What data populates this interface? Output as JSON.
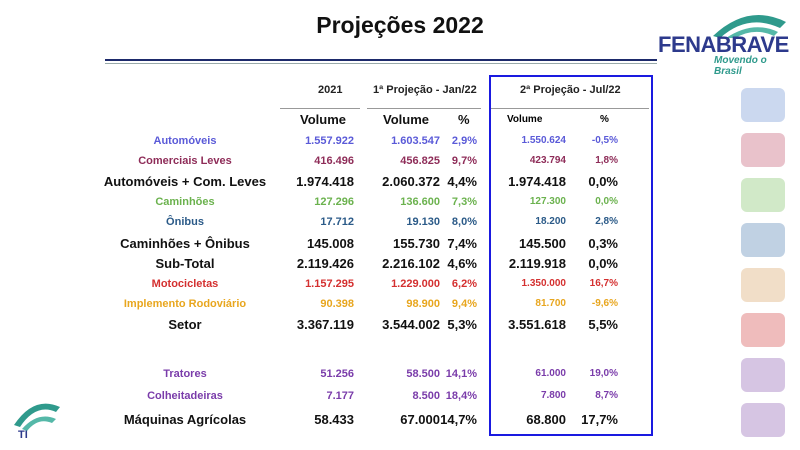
{
  "title": "Projeções 2022",
  "logo": {
    "brand": "FENABRAVE",
    "tagline": "Movendo o Brasil"
  },
  "footer_logo": {
    "text": "TI"
  },
  "headers": {
    "y2021": "2021",
    "p1": "1ª Projeção - Jan/22",
    "p2": "2ª Projeção - Jul/22",
    "volume": "Volume",
    "pct": "%"
  },
  "rows": [
    {
      "label": "Automóveis",
      "v2021": "1.557.922",
      "p1v": "1.603.547",
      "p1p": "2,9%",
      "p2v": "1.550.624",
      "p2p": "-0,5%",
      "color": "#5a5ad8"
    },
    {
      "label": "Comerciais Leves",
      "v2021": "416.496",
      "p1v": "456.825",
      "p1p": "9,7%",
      "p2v": "423.794",
      "p2p": "1,8%",
      "color": "#8e2c58"
    },
    {
      "label": "Automóveis + Com. Leves",
      "v2021": "1.974.418",
      "p1v": "2.060.372",
      "p1p": "4,4%",
      "p2v": "1.974.418",
      "p2p": "0,0%",
      "color": "#111111"
    },
    {
      "label": "Caminhões",
      "v2021": "127.296",
      "p1v": "136.600",
      "p1p": "7,3%",
      "p2v": "127.300",
      "p2p": "0,0%",
      "color": "#6bb24e"
    },
    {
      "label": "Ônibus",
      "v2021": "17.712",
      "p1v": "19.130",
      "p1p": "8,0%",
      "p2v": "18.200",
      "p2p": "2,8%",
      "color": "#2b5a88"
    },
    {
      "label": "Caminhões + Ônibus",
      "v2021": "145.008",
      "p1v": "155.730",
      "p1p": "7,4%",
      "p2v": "145.500",
      "p2p": "0,3%",
      "color": "#111111"
    },
    {
      "label": "Sub-Total",
      "v2021": "2.119.426",
      "p1v": "2.216.102",
      "p1p": "4,6%",
      "p2v": "2.119.918",
      "p2p": "0,0%",
      "color": "#111111"
    },
    {
      "label": "Motocicletas",
      "v2021": "1.157.295",
      "p1v": "1.229.000",
      "p1p": "6,2%",
      "p2v": "1.350.000",
      "p2p": "16,7%",
      "color": "#d43030"
    },
    {
      "label": "Implemento Rodoviário",
      "v2021": "90.398",
      "p1v": "98.900",
      "p1p": "9,4%",
      "p2v": "81.700",
      "p2p": "-9,6%",
      "color": "#e8a61e"
    },
    {
      "label": "Setor",
      "v2021": "3.367.119",
      "p1v": "3.544.002",
      "p1p": "5,3%",
      "p2v": "3.551.618",
      "p2p": "5,5%",
      "color": "#111111"
    },
    {
      "label": "Tratores",
      "v2021": "51.256",
      "p1v": "58.500",
      "p1p": "14,1%",
      "p2v": "61.000",
      "p2p": "19,0%",
      "color": "#7a3caa"
    },
    {
      "label": "Colheitadeiras",
      "v2021": "7.177",
      "p1v": "8.500",
      "p1p": "18,4%",
      "p2v": "7.800",
      "p2p": "8,7%",
      "color": "#7a3caa"
    },
    {
      "label": "Máquinas Agrícolas",
      "v2021": "58.433",
      "p1v": "67.000",
      "p1p": "14,7%",
      "p2v": "68.800",
      "p2p": "17,7%",
      "color": "#111111"
    }
  ],
  "side_icons": [
    {
      "name": "car-icon",
      "color": "#6a8fd0"
    },
    {
      "name": "van-icon",
      "color": "#c0506a"
    },
    {
      "name": "truck-icon",
      "color": "#7cc060"
    },
    {
      "name": "bus-icon",
      "color": "#4a7ab0"
    },
    {
      "name": "trailer-icon",
      "color": "#d8a060"
    },
    {
      "name": "motorcycle-icon",
      "color": "#d04040"
    },
    {
      "name": "tractor-icon",
      "color": "#8a5ab0"
    },
    {
      "name": "harvester-icon",
      "color": "#8a5ab0"
    }
  ]
}
